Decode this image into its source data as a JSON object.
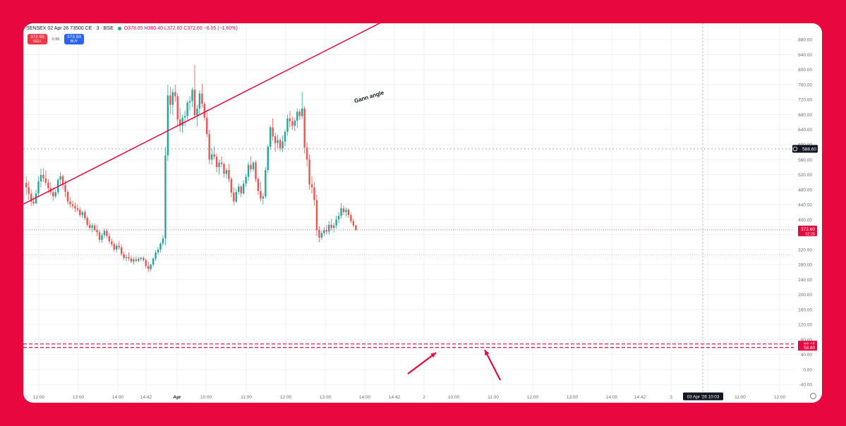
{
  "header": {
    "symbol": "SENSEX 02 Apr 26 73500 CE · 3 · BSE",
    "ohlc": "O378.65 H380.40 L372.60 C372.60 −6.05 (−1.60%)"
  },
  "trade": {
    "sell_price": "372.55",
    "sell_label": "SELL",
    "spread": "0.95",
    "buy_price": "373.50",
    "buy_label": "BUY"
  },
  "colors": {
    "background": "#E8073F",
    "up": "#26a69a",
    "down": "#ef5350",
    "accent": "#E8073F"
  },
  "chart_data": {
    "type": "candlestick",
    "price_ticks": [
      "-40.00",
      "0.00",
      "40.00",
      "80.00",
      "120.00",
      "160.00",
      "200.00",
      "240.00",
      "280.00",
      "320.00",
      "360.00",
      "400.00",
      "440.00",
      "480.00",
      "520.00",
      "560.00",
      "600.00",
      "640.00",
      "680.00",
      "720.00",
      "760.00",
      "800.00",
      "840.00",
      "880.00"
    ],
    "ylim": [
      -48,
      920
    ],
    "time_ticks": [
      "12:00",
      "13:00",
      "14:00",
      "14:42",
      "Apr",
      "10:00",
      "11:00",
      "12:00",
      "13:00",
      "14:00",
      "14:42",
      "2",
      "10:00",
      "11:00",
      "12:00",
      "13:00",
      "14:00",
      "14:42",
      "3",
      "10:00",
      "11:00",
      "12:00"
    ],
    "crosshair_price": 588.6,
    "crosshair_price_label": "588.60",
    "crosshair_time_label": "03 Apr '26   10:03",
    "last_price": 372.6,
    "last_price_label": "372.60",
    "countdown_label": "02:25",
    "dotted_level": 306,
    "lower_levels": [
      {
        "value": 68.15,
        "label": "68.15"
      },
      {
        "value": 58.8,
        "label": "58.80"
      }
    ],
    "gann_angle": {
      "label": "Gann angle",
      "start": {
        "bar": 0,
        "price": 441
      },
      "end": {
        "bar": 150,
        "price": 940
      }
    },
    "arrows": [
      "arrow-up-right",
      "arrow-up-left"
    ],
    "candles": [
      [
        498,
        516,
        465,
        486
      ],
      [
        486,
        502,
        453,
        469
      ],
      [
        469,
        480,
        436,
        448
      ],
      [
        448,
        463,
        438,
        443
      ],
      [
        443,
        479,
        441,
        470
      ],
      [
        470,
        515,
        462,
        502
      ],
      [
        502,
        536,
        486,
        519
      ],
      [
        519,
        536,
        500,
        510
      ],
      [
        510,
        532,
        491,
        498
      ],
      [
        498,
        508,
        470,
        484
      ],
      [
        484,
        500,
        466,
        473
      ],
      [
        473,
        487,
        450,
        462
      ],
      [
        462,
        480,
        457,
        473
      ],
      [
        473,
        511,
        467,
        506
      ],
      [
        506,
        526,
        491,
        516
      ],
      [
        516,
        520,
        480,
        492
      ],
      [
        492,
        504,
        460,
        474
      ],
      [
        474,
        480,
        440,
        448
      ],
      [
        448,
        460,
        432,
        441
      ],
      [
        441,
        450,
        428,
        436
      ],
      [
        436,
        446,
        420,
        430
      ],
      [
        430,
        441,
        420,
        426
      ],
      [
        426,
        433,
        407,
        412
      ],
      [
        412,
        424,
        404,
        420
      ],
      [
        420,
        426,
        398,
        404
      ],
      [
        404,
        410,
        380,
        386
      ],
      [
        386,
        398,
        372,
        378
      ],
      [
        378,
        390,
        366,
        384
      ],
      [
        384,
        390,
        368,
        372
      ],
      [
        372,
        385,
        356,
        366
      ],
      [
        366,
        372,
        338,
        346
      ],
      [
        346,
        364,
        338,
        358
      ],
      [
        358,
        376,
        350,
        370
      ],
      [
        370,
        376,
        350,
        356
      ],
      [
        356,
        364,
        336,
        342
      ],
      [
        342,
        350,
        328,
        334
      ],
      [
        334,
        340,
        314,
        320
      ],
      [
        320,
        336,
        312,
        330
      ],
      [
        330,
        342,
        320,
        326
      ],
      [
        326,
        334,
        303,
        308
      ],
      [
        308,
        314,
        292,
        297
      ],
      [
        297,
        306,
        288,
        300
      ],
      [
        300,
        312,
        290,
        296
      ],
      [
        296,
        304,
        284,
        288
      ],
      [
        288,
        300,
        280,
        294
      ],
      [
        294,
        302,
        286,
        290
      ],
      [
        290,
        300,
        286,
        295
      ],
      [
        295,
        301,
        289,
        298
      ],
      [
        298,
        302,
        288,
        292
      ],
      [
        292,
        296,
        270,
        276
      ],
      [
        276,
        288,
        260,
        268
      ],
      [
        268,
        282,
        262,
        280
      ],
      [
        280,
        300,
        274,
        296
      ],
      [
        296,
        318,
        290,
        312
      ],
      [
        312,
        326,
        306,
        320
      ],
      [
        320,
        340,
        312,
        336
      ],
      [
        336,
        358,
        330,
        350
      ],
      [
        350,
        594,
        332,
        571
      ],
      [
        571,
        760,
        556,
        731
      ],
      [
        731,
        754,
        682,
        706
      ],
      [
        706,
        749,
        680,
        740
      ],
      [
        740,
        760,
        714,
        729
      ],
      [
        729,
        737,
        648,
        667
      ],
      [
        667,
        697,
        634,
        650
      ],
      [
        650,
        680,
        632,
        672
      ],
      [
        672,
        690,
        650,
        676
      ],
      [
        676,
        718,
        666,
        712
      ],
      [
        712,
        730,
        690,
        716
      ],
      [
        716,
        752,
        700,
        746
      ],
      [
        746,
        812,
        668,
        678
      ],
      [
        678,
        706,
        648,
        696
      ],
      [
        696,
        744,
        680,
        736
      ],
      [
        736,
        762,
        698,
        709
      ],
      [
        709,
        715,
        664,
        672
      ],
      [
        672,
        690,
        620,
        628
      ],
      [
        628,
        640,
        548,
        560
      ],
      [
        560,
        590,
        546,
        574
      ],
      [
        574,
        595,
        560,
        568
      ],
      [
        568,
        576,
        526,
        540
      ],
      [
        540,
        560,
        520,
        552
      ],
      [
        552,
        568,
        540,
        548
      ],
      [
        548,
        552,
        512,
        522
      ],
      [
        522,
        538,
        510,
        532
      ],
      [
        532,
        548,
        500,
        508
      ],
      [
        508,
        514,
        460,
        472
      ],
      [
        472,
        486,
        438,
        448
      ],
      [
        448,
        482,
        444,
        474
      ],
      [
        474,
        496,
        466,
        488
      ],
      [
        488,
        492,
        460,
        470
      ],
      [
        470,
        504,
        466,
        496
      ],
      [
        496,
        522,
        488,
        514
      ],
      [
        514,
        554,
        504,
        546
      ],
      [
        546,
        568,
        526,
        534
      ],
      [
        534,
        556,
        528,
        552
      ],
      [
        552,
        558,
        500,
        508
      ],
      [
        508,
        514,
        466,
        476
      ],
      [
        476,
        500,
        448,
        456
      ],
      [
        456,
        470,
        440,
        462
      ],
      [
        462,
        540,
        456,
        532
      ],
      [
        532,
        600,
        524,
        594
      ],
      [
        594,
        652,
        586,
        646
      ],
      [
        646,
        670,
        610,
        622
      ],
      [
        622,
        632,
        580,
        604
      ],
      [
        604,
        626,
        590,
        612
      ],
      [
        612,
        618,
        582,
        590
      ],
      [
        590,
        624,
        580,
        608
      ],
      [
        608,
        640,
        596,
        634
      ],
      [
        634,
        680,
        624,
        670
      ],
      [
        670,
        690,
        646,
        662
      ],
      [
        662,
        674,
        640,
        650
      ],
      [
        650,
        672,
        636,
        664
      ],
      [
        664,
        696,
        644,
        688
      ],
      [
        688,
        694,
        666,
        676
      ],
      [
        676,
        740,
        668,
        696
      ],
      [
        696,
        702,
        576,
        592
      ],
      [
        592,
        606,
        542,
        560
      ],
      [
        560,
        574,
        480,
        494
      ],
      [
        494,
        516,
        470,
        486
      ],
      [
        486,
        500,
        436,
        452
      ],
      [
        452,
        466,
        356,
        372
      ],
      [
        372,
        382,
        340,
        352
      ],
      [
        352,
        370,
        346,
        364
      ],
      [
        364,
        380,
        356,
        372
      ],
      [
        372,
        386,
        360,
        368
      ],
      [
        368,
        396,
        360,
        386
      ],
      [
        386,
        402,
        370,
        378
      ],
      [
        378,
        392,
        366,
        384
      ],
      [
        384,
        410,
        376,
        400
      ],
      [
        400,
        420,
        390,
        410
      ],
      [
        410,
        444,
        402,
        430
      ],
      [
        430,
        438,
        412,
        420
      ],
      [
        420,
        432,
        408,
        426
      ],
      [
        426,
        430,
        404,
        412
      ],
      [
        412,
        418,
        390,
        396
      ],
      [
        396,
        402,
        380,
        384
      ],
      [
        384,
        386,
        370,
        372
      ]
    ]
  }
}
